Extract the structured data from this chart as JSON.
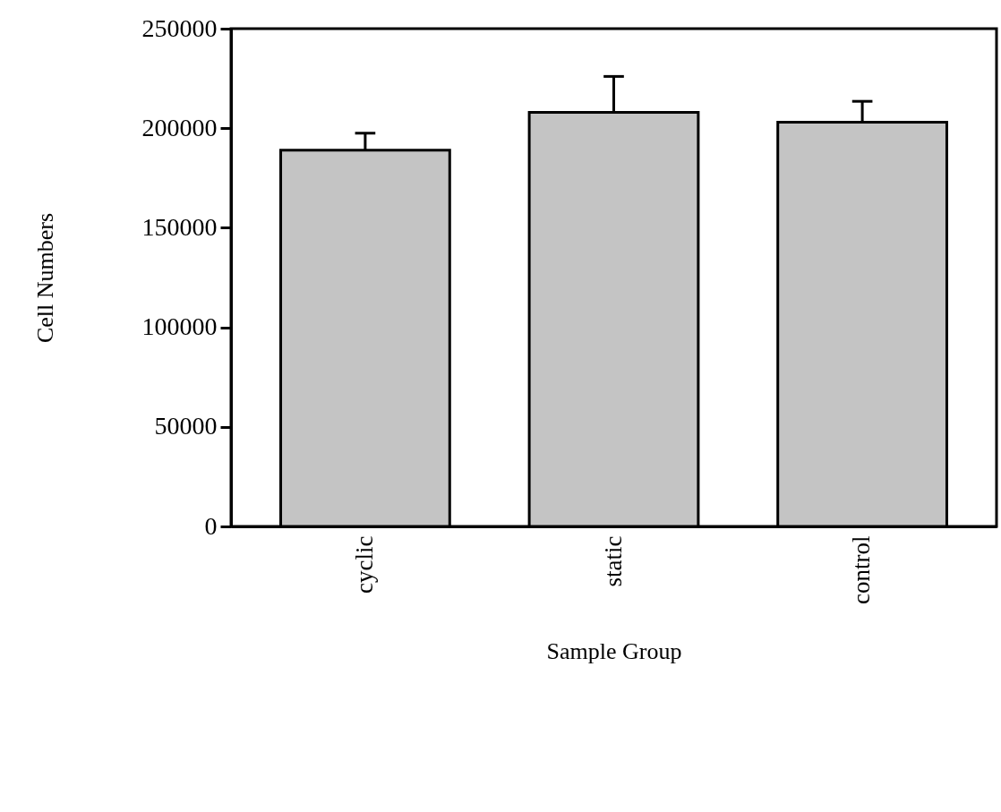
{
  "chart_data": {
    "type": "bar",
    "xlabel": "Sample Group",
    "ylabel": "Cell Numbers",
    "categories": [
      "cyclic",
      "static",
      "control"
    ],
    "values": [
      189000,
      208000,
      203000
    ],
    "errors": [
      [
        189000,
        197500
      ],
      [
        208000,
        226000
      ],
      [
        203000,
        213500
      ]
    ],
    "color": "#c4c4c4",
    "ylim": [
      0,
      250000
    ],
    "yticks": [
      0,
      50000,
      100000,
      150000,
      200000,
      250000
    ],
    "grid": false
  }
}
